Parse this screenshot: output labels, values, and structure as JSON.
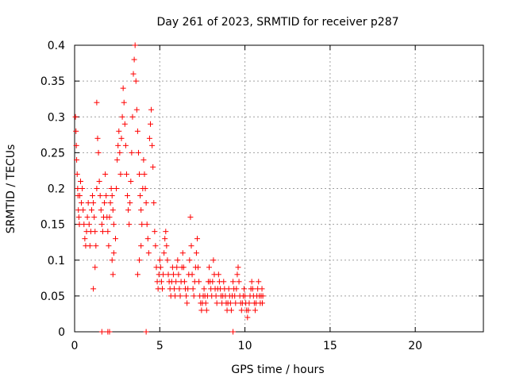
{
  "chart_data": {
    "type": "scatter",
    "title": "Day 261 of 2023, SRMTID for receiver p287",
    "xlabel": "GPS time / hours",
    "ylabel": "SRMTID / TECUs",
    "xlim": [
      0,
      24
    ],
    "ylim": [
      0,
      0.4
    ],
    "x_ticks": [
      0,
      5,
      10,
      15,
      20
    ],
    "x_tick_labels": [
      "0",
      "5",
      "10",
      "15",
      "20"
    ],
    "y_ticks": [
      0,
      0.05,
      0.1,
      0.15,
      0.2,
      0.25,
      0.3,
      0.35,
      0.4
    ],
    "y_tick_labels": [
      "0",
      "0.05",
      "0.1",
      "0.15",
      "0.2",
      "0.25",
      "0.3",
      "0.35",
      "0.4"
    ],
    "grid": true,
    "marker": "+",
    "series_color": "#ff0000",
    "series": [
      {
        "name": "SRMTID",
        "points": [
          [
            0.05,
            0.3
          ],
          [
            0.08,
            0.28
          ],
          [
            0.1,
            0.26
          ],
          [
            0.12,
            0.24
          ],
          [
            0.15,
            0.22
          ],
          [
            0.18,
            0.2
          ],
          [
            0.2,
            0.19
          ],
          [
            0.22,
            0.17
          ],
          [
            0.25,
            0.16
          ],
          [
            0.28,
            0.15
          ],
          [
            0.3,
            0.19
          ],
          [
            0.35,
            0.21
          ],
          [
            0.4,
            0.18
          ],
          [
            0.45,
            0.2
          ],
          [
            0.5,
            0.17
          ],
          [
            0.55,
            0.15
          ],
          [
            0.6,
            0.13
          ],
          [
            0.65,
            0.12
          ],
          [
            0.7,
            0.14
          ],
          [
            0.75,
            0.16
          ],
          [
            0.8,
            0.18
          ],
          [
            0.85,
            0.15
          ],
          [
            0.9,
            0.12
          ],
          [
            0.95,
            0.14
          ],
          [
            1.0,
            0.17
          ],
          [
            1.05,
            0.19
          ],
          [
            1.1,
            0.18
          ],
          [
            1.15,
            0.16
          ],
          [
            1.2,
            0.14
          ],
          [
            1.25,
            0.12
          ],
          [
            1.1,
            0.06
          ],
          [
            1.2,
            0.09
          ],
          [
            1.3,
            0.2
          ],
          [
            1.35,
            0.27
          ],
          [
            1.3,
            0.32
          ],
          [
            1.4,
            0.25
          ],
          [
            1.45,
            0.21
          ],
          [
            1.5,
            0.19
          ],
          [
            1.55,
            0.17
          ],
          [
            1.6,
            0.15
          ],
          [
            1.65,
            0.14
          ],
          [
            1.7,
            0.16
          ],
          [
            1.75,
            0.18
          ],
          [
            1.8,
            0.22
          ],
          [
            1.85,
            0.19
          ],
          [
            1.9,
            0.16
          ],
          [
            1.95,
            0.14
          ],
          [
            2.0,
            0.12
          ],
          [
            2.05,
            0.16
          ],
          [
            2.1,
            0.18
          ],
          [
            2.15,
            0.2
          ],
          [
            2.2,
            0.19
          ],
          [
            2.25,
            0.17
          ],
          [
            2.3,
            0.15
          ],
          [
            2.2,
            0.1
          ],
          [
            2.25,
            0.08
          ],
          [
            2.3,
            0.11
          ],
          [
            2.4,
            0.13
          ],
          [
            2.45,
            0.2
          ],
          [
            2.5,
            0.24
          ],
          [
            2.55,
            0.26
          ],
          [
            2.6,
            0.28
          ],
          [
            2.65,
            0.25
          ],
          [
            2.7,
            0.22
          ],
          [
            2.75,
            0.27
          ],
          [
            2.8,
            0.3
          ],
          [
            2.85,
            0.34
          ],
          [
            2.9,
            0.32
          ],
          [
            2.95,
            0.29
          ],
          [
            3.0,
            0.26
          ],
          [
            3.05,
            0.22
          ],
          [
            3.1,
            0.19
          ],
          [
            3.15,
            0.17
          ],
          [
            3.2,
            0.15
          ],
          [
            3.25,
            0.18
          ],
          [
            3.3,
            0.21
          ],
          [
            3.35,
            0.25
          ],
          [
            3.4,
            0.3
          ],
          [
            3.45,
            0.36
          ],
          [
            3.5,
            0.38
          ],
          [
            3.55,
            0.4
          ],
          [
            3.6,
            0.35
          ],
          [
            3.65,
            0.31
          ],
          [
            3.7,
            0.28
          ],
          [
            3.75,
            0.25
          ],
          [
            3.8,
            0.22
          ],
          [
            3.85,
            0.19
          ],
          [
            3.9,
            0.17
          ],
          [
            3.95,
            0.15
          ],
          [
            3.7,
            0.08
          ],
          [
            3.8,
            0.1
          ],
          [
            3.9,
            0.12
          ],
          [
            4.0,
            0.2
          ],
          [
            4.05,
            0.24
          ],
          [
            4.1,
            0.22
          ],
          [
            4.15,
            0.2
          ],
          [
            4.2,
            0.18
          ],
          [
            4.25,
            0.15
          ],
          [
            4.3,
            0.13
          ],
          [
            4.35,
            0.11
          ],
          [
            4.4,
            0.27
          ],
          [
            4.45,
            0.29
          ],
          [
            4.5,
            0.31
          ],
          [
            4.55,
            0.26
          ],
          [
            4.6,
            0.23
          ],
          [
            4.65,
            0.18
          ],
          [
            4.7,
            0.14
          ],
          [
            4.75,
            0.12
          ],
          [
            4.8,
            0.09
          ],
          [
            4.85,
            0.07
          ],
          [
            4.9,
            0.06
          ],
          [
            4.95,
            0.08
          ],
          [
            5.0,
            0.1
          ],
          [
            5.05,
            0.09
          ],
          [
            5.1,
            0.07
          ],
          [
            5.15,
            0.06
          ],
          [
            5.2,
            0.08
          ],
          [
            5.25,
            0.11
          ],
          [
            5.3,
            0.13
          ],
          [
            5.35,
            0.14
          ],
          [
            5.4,
            0.12
          ],
          [
            5.45,
            0.1
          ],
          [
            5.5,
            0.08
          ],
          [
            5.55,
            0.07
          ],
          [
            5.6,
            0.06
          ],
          [
            5.65,
            0.05
          ],
          [
            5.7,
            0.07
          ],
          [
            5.75,
            0.09
          ],
          [
            5.8,
            0.08
          ],
          [
            5.85,
            0.06
          ],
          [
            5.9,
            0.05
          ],
          [
            5.95,
            0.07
          ],
          [
            6.0,
            0.09
          ],
          [
            6.05,
            0.1
          ],
          [
            6.1,
            0.08
          ],
          [
            6.15,
            0.06
          ],
          [
            6.2,
            0.05
          ],
          [
            6.25,
            0.07
          ],
          [
            6.3,
            0.09
          ],
          [
            6.35,
            0.11
          ],
          [
            6.4,
            0.09
          ],
          [
            6.45,
            0.07
          ],
          [
            6.5,
            0.06
          ],
          [
            6.55,
            0.05
          ],
          [
            6.6,
            0.04
          ],
          [
            6.65,
            0.06
          ],
          [
            6.7,
            0.08
          ],
          [
            6.75,
            0.1
          ],
          [
            6.8,
            0.16
          ],
          [
            6.85,
            0.12
          ],
          [
            6.9,
            0.08
          ],
          [
            6.95,
            0.06
          ],
          [
            7.0,
            0.05
          ],
          [
            7.05,
            0.07
          ],
          [
            7.1,
            0.09
          ],
          [
            7.15,
            0.11
          ],
          [
            7.2,
            0.13
          ],
          [
            7.25,
            0.09
          ],
          [
            7.3,
            0.07
          ],
          [
            7.35,
            0.05
          ],
          [
            7.4,
            0.04
          ],
          [
            7.45,
            0.03
          ],
          [
            7.5,
            0.04
          ],
          [
            7.55,
            0.05
          ],
          [
            7.6,
            0.06
          ],
          [
            7.65,
            0.05
          ],
          [
            7.7,
            0.04
          ],
          [
            7.75,
            0.03
          ],
          [
            7.8,
            0.05
          ],
          [
            7.85,
            0.07
          ],
          [
            7.9,
            0.09
          ],
          [
            7.95,
            0.07
          ],
          [
            8.0,
            0.06
          ],
          [
            8.05,
            0.05
          ],
          [
            8.1,
            0.07
          ],
          [
            8.15,
            0.1
          ],
          [
            8.2,
            0.08
          ],
          [
            8.25,
            0.06
          ],
          [
            8.3,
            0.05
          ],
          [
            8.35,
            0.04
          ],
          [
            8.4,
            0.06
          ],
          [
            8.45,
            0.08
          ],
          [
            8.5,
            0.07
          ],
          [
            8.55,
            0.06
          ],
          [
            8.6,
            0.05
          ],
          [
            8.65,
            0.04
          ],
          [
            8.7,
            0.05
          ],
          [
            8.75,
            0.07
          ],
          [
            8.8,
            0.06
          ],
          [
            8.85,
            0.05
          ],
          [
            8.9,
            0.04
          ],
          [
            8.95,
            0.03
          ],
          [
            9.0,
            0.04
          ],
          [
            9.05,
            0.06
          ],
          [
            9.1,
            0.05
          ],
          [
            9.15,
            0.04
          ],
          [
            9.2,
            0.03
          ],
          [
            9.25,
            0.05
          ],
          [
            9.3,
            0.07
          ],
          [
            9.35,
            0.06
          ],
          [
            9.4,
            0.05
          ],
          [
            9.45,
            0.04
          ],
          [
            9.5,
            0.06
          ],
          [
            9.55,
            0.08
          ],
          [
            9.6,
            0.09
          ],
          [
            9.65,
            0.07
          ],
          [
            9.7,
            0.05
          ],
          [
            9.75,
            0.04
          ],
          [
            9.8,
            0.03
          ],
          [
            9.85,
            0.04
          ],
          [
            9.9,
            0.05
          ],
          [
            9.95,
            0.06
          ],
          [
            10.0,
            0.05
          ],
          [
            10.05,
            0.04
          ],
          [
            10.1,
            0.03
          ],
          [
            10.15,
            0.02
          ],
          [
            10.2,
            0.03
          ],
          [
            10.25,
            0.04
          ],
          [
            10.3,
            0.05
          ],
          [
            10.35,
            0.06
          ],
          [
            10.4,
            0.07
          ],
          [
            10.45,
            0.06
          ],
          [
            10.5,
            0.05
          ],
          [
            10.55,
            0.04
          ],
          [
            10.6,
            0.03
          ],
          [
            10.65,
            0.04
          ],
          [
            10.7,
            0.05
          ],
          [
            10.75,
            0.06
          ],
          [
            10.8,
            0.07
          ],
          [
            10.85,
            0.05
          ],
          [
            10.9,
            0.04
          ],
          [
            10.95,
            0.05
          ],
          [
            11.0,
            0.06
          ],
          [
            11.02,
            0.04
          ],
          [
            11.05,
            0.05
          ],
          [
            1.6,
            0.0
          ],
          [
            1.95,
            0.0
          ],
          [
            2.05,
            0.0
          ],
          [
            4.2,
            0.0
          ],
          [
            9.3,
            0.0
          ]
        ]
      }
    ]
  }
}
